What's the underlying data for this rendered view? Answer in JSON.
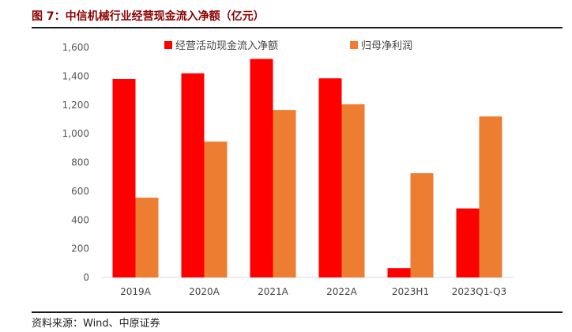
{
  "header": {
    "title": "图 7：中信机械行业经营现金流入净额（亿元）"
  },
  "footer": {
    "source": "资料来源：Wind、中原证券"
  },
  "chart_data": {
    "type": "bar",
    "title": "",
    "xlabel": "",
    "ylabel": "",
    "categories": [
      "2019A",
      "2020A",
      "2021A",
      "2022A",
      "2023H1",
      "2023Q1-Q3"
    ],
    "ylim": [
      0,
      1600
    ],
    "yticks": [
      0,
      200,
      400,
      600,
      800,
      1000,
      1200,
      1400,
      1600
    ],
    "ytick_labels": [
      "0",
      "200",
      "400",
      "600",
      "800",
      "1,000",
      "1,200",
      "1,400",
      "1,600"
    ],
    "grid": false,
    "legend_position": "top",
    "series": [
      {
        "name": "经营活动现金流入净额",
        "color": "#ff0000",
        "values": [
          1380,
          1420,
          1520,
          1385,
          65,
          480
        ]
      },
      {
        "name": "归母净利润",
        "color": "#ed7d31",
        "values": [
          555,
          945,
          1165,
          1205,
          725,
          1120
        ]
      }
    ]
  }
}
